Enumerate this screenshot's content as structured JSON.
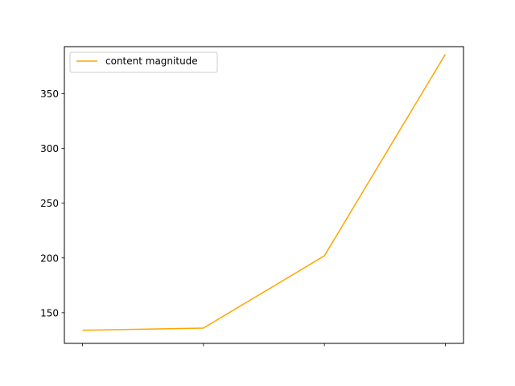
{
  "chart_data": {
    "type": "line",
    "title": "",
    "xlabel": "",
    "ylabel": "",
    "x": [
      0,
      1,
      2,
      3
    ],
    "xtick_labels": [
      "",
      "",
      "",
      ""
    ],
    "series": [
      {
        "name": "content magnitude",
        "color": "#ffa500",
        "values": [
          134,
          136,
          202,
          386
        ]
      }
    ],
    "xlim": [
      -0.15,
      3.15
    ],
    "ylim": [
      122,
      393
    ],
    "yticks": [
      150,
      200,
      250,
      300,
      350
    ],
    "grid": false,
    "legend": {
      "placement": "upper-left"
    }
  }
}
